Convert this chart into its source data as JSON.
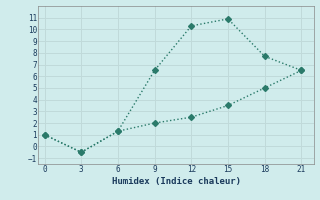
{
  "xlabel": "Humidex (Indice chaleur)",
  "x_upper": [
    0,
    3,
    6,
    9,
    12,
    15,
    18,
    21
  ],
  "y_upper": [
    1,
    -0.5,
    1.3,
    6.5,
    10.3,
    10.9,
    7.7,
    6.5
  ],
  "x_lower": [
    0,
    3,
    6,
    9,
    12,
    15,
    18,
    21
  ],
  "y_lower": [
    1,
    -0.5,
    1.3,
    2.0,
    2.5,
    3.5,
    5.0,
    6.5
  ],
  "line_color": "#2a7a6a",
  "bg_color": "#d0ecec",
  "grid_color": "#c0dada",
  "xlim": [
    -0.5,
    22
  ],
  "ylim": [
    -1.5,
    12
  ],
  "xticks": [
    0,
    3,
    6,
    9,
    12,
    15,
    18,
    21
  ],
  "yticks": [
    -1,
    0,
    1,
    2,
    3,
    4,
    5,
    6,
    7,
    8,
    9,
    10,
    11
  ],
  "markersize": 3.0,
  "linewidth": 1.0
}
